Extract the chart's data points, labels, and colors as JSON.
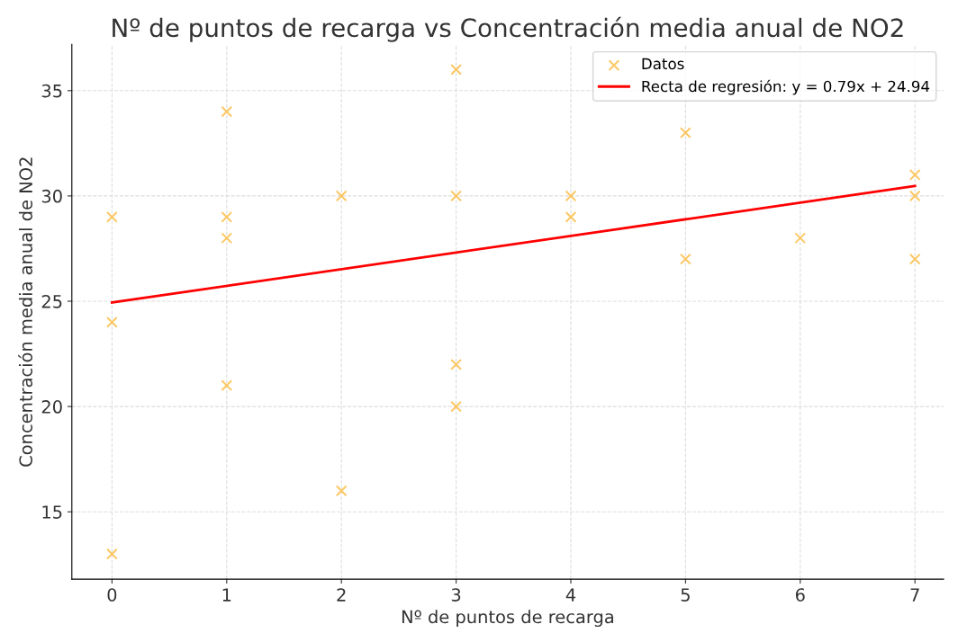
{
  "chart_data": {
    "type": "scatter",
    "title": "Nº de puntos de recarga vs Concentración media anual de NO2",
    "xlabel": "Nº de puntos de recarga",
    "ylabel": "Concentración media anual de NO2",
    "series": [
      {
        "name": "Datos",
        "color": "#fbbf4d",
        "marker": "cross",
        "x": [
          0,
          0,
          0,
          1,
          1,
          1,
          1,
          2,
          2,
          3,
          3,
          3,
          3,
          4,
          4,
          5,
          5,
          6,
          7,
          7,
          7
        ],
        "values": [
          29,
          24,
          13,
          34,
          29,
          28,
          21,
          30,
          16,
          36,
          30,
          22,
          20,
          30,
          29,
          33,
          27,
          28,
          31,
          30,
          27
        ]
      },
      {
        "name": "Recta de regresión: y = 0.79x + 24.94",
        "type": "line",
        "color": "#ff0000",
        "x": [
          0,
          7
        ],
        "values": [
          24.94,
          30.47
        ]
      }
    ],
    "xlim": [
      -0.35,
      7.25
    ],
    "ylim": [
      11.8,
      37.2
    ],
    "xticks": [
      0,
      1,
      2,
      3,
      4,
      5,
      6,
      7
    ],
    "yticks": [
      15,
      20,
      25,
      30,
      35
    ],
    "grid": true,
    "legend": "top right"
  }
}
